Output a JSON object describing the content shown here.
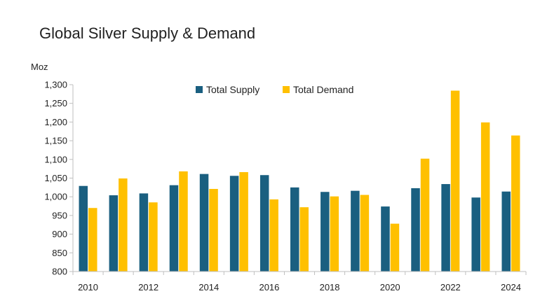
{
  "chart_data": {
    "type": "bar",
    "title": "Global Silver Supply & Demand",
    "ylabel": "Moz",
    "xlabel": "",
    "x": [
      2010,
      2011,
      2012,
      2013,
      2014,
      2015,
      2016,
      2017,
      2018,
      2019,
      2020,
      2021,
      2022,
      2023,
      2024
    ],
    "x_tick_labels": [
      "2010",
      "2012",
      "2014",
      "2016",
      "2018",
      "2020",
      "2022",
      "2024"
    ],
    "x_tick_values": [
      2010,
      2012,
      2014,
      2016,
      2018,
      2020,
      2022,
      2024
    ],
    "ylim": [
      800,
      1300
    ],
    "y_ticks": [
      800,
      850,
      900,
      950,
      1000,
      1050,
      1100,
      1150,
      1200,
      1250,
      1300
    ],
    "y_tick_labels": [
      "800",
      "850",
      "900",
      "950",
      "1,000",
      "1,050",
      "1,100",
      "1,150",
      "1,200",
      "1,250",
      "1,300"
    ],
    "grid": false,
    "legend_position": "top-center",
    "series": [
      {
        "name": "Total Supply",
        "color": "#1a5f80",
        "values": [
          1029,
          1004,
          1009,
          1031,
          1061,
          1056,
          1058,
          1025,
          1013,
          1016,
          974,
          1023,
          1034,
          998,
          1014
        ]
      },
      {
        "name": "Total Demand",
        "color": "#ffc000",
        "values": [
          970,
          1049,
          985,
          1068,
          1021,
          1066,
          993,
          972,
          1001,
          1005,
          928,
          1102,
          1284,
          1199,
          1164
        ]
      }
    ]
  }
}
